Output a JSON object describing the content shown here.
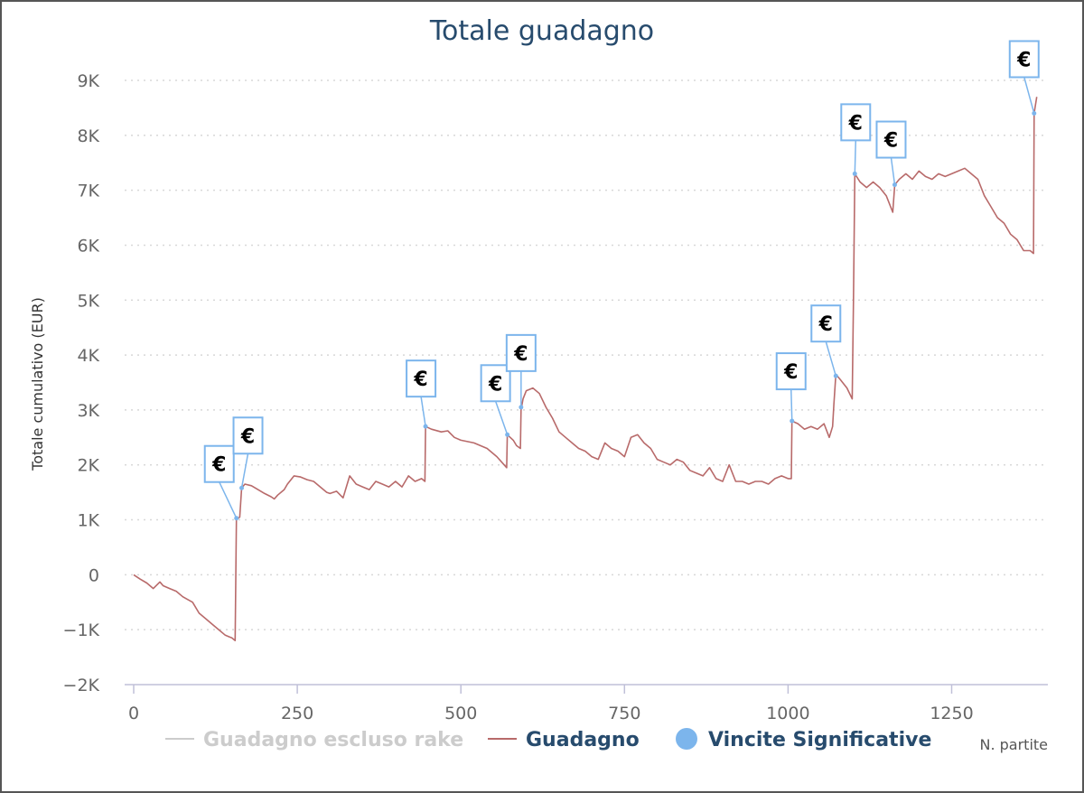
{
  "chart_data": {
    "type": "line",
    "title": "Totale guadagno",
    "ylabel": "Totale cumulativo (EUR)",
    "xlabel": "N. partite",
    "ylim": [
      -2000,
      9000
    ],
    "xlim": [
      0,
      1400
    ],
    "y_ticks": [
      {
        "value": -2000,
        "label": "−2K"
      },
      {
        "value": -1000,
        "label": "−1K"
      },
      {
        "value": 0,
        "label": "0"
      },
      {
        "value": 1000,
        "label": "1K"
      },
      {
        "value": 2000,
        "label": "2K"
      },
      {
        "value": 3000,
        "label": "3K"
      },
      {
        "value": 4000,
        "label": "4K"
      },
      {
        "value": 5000,
        "label": "5K"
      },
      {
        "value": 6000,
        "label": "6K"
      },
      {
        "value": 7000,
        "label": "7K"
      },
      {
        "value": 8000,
        "label": "8K"
      },
      {
        "value": 9000,
        "label": "9K"
      }
    ],
    "x_ticks": [
      {
        "value": 0,
        "label": "0"
      },
      {
        "value": 250,
        "label": "250"
      },
      {
        "value": 500,
        "label": "500"
      },
      {
        "value": 750,
        "label": "750"
      },
      {
        "value": 1000,
        "label": "1000"
      },
      {
        "value": 1250,
        "label": "1250"
      }
    ],
    "grid": true,
    "legend_position": "bottom",
    "legend": [
      {
        "name": "Guadagno escluso rake",
        "color": "#cccccc",
        "kind": "line"
      },
      {
        "name": "Guadagno",
        "color": "#b86a6a",
        "kind": "line"
      },
      {
        "name": "Vincite Significative",
        "color": "#7cb5ec",
        "kind": "marker"
      }
    ],
    "series": [
      {
        "name": "Guadagno",
        "color": "#b86a6a",
        "points": [
          [
            0,
            0
          ],
          [
            10,
            -80
          ],
          [
            20,
            -150
          ],
          [
            30,
            -250
          ],
          [
            40,
            -130
          ],
          [
            45,
            -200
          ],
          [
            55,
            -250
          ],
          [
            65,
            -300
          ],
          [
            75,
            -400
          ],
          [
            90,
            -500
          ],
          [
            100,
            -700
          ],
          [
            110,
            -800
          ],
          [
            120,
            -900
          ],
          [
            130,
            -1000
          ],
          [
            140,
            -1100
          ],
          [
            150,
            -1150
          ],
          [
            155,
            -1200
          ],
          [
            157,
            1000
          ],
          [
            162,
            1050
          ],
          [
            165,
            1580
          ],
          [
            170,
            1650
          ],
          [
            180,
            1620
          ],
          [
            190,
            1550
          ],
          [
            200,
            1480
          ],
          [
            210,
            1420
          ],
          [
            215,
            1380
          ],
          [
            220,
            1450
          ],
          [
            230,
            1550
          ],
          [
            235,
            1650
          ],
          [
            245,
            1800
          ],
          [
            255,
            1780
          ],
          [
            265,
            1730
          ],
          [
            275,
            1700
          ],
          [
            285,
            1600
          ],
          [
            290,
            1550
          ],
          [
            295,
            1500
          ],
          [
            300,
            1480
          ],
          [
            310,
            1520
          ],
          [
            320,
            1400
          ],
          [
            330,
            1800
          ],
          [
            340,
            1650
          ],
          [
            350,
            1600
          ],
          [
            360,
            1550
          ],
          [
            370,
            1700
          ],
          [
            380,
            1650
          ],
          [
            390,
            1600
          ],
          [
            400,
            1700
          ],
          [
            410,
            1600
          ],
          [
            420,
            1800
          ],
          [
            430,
            1700
          ],
          [
            440,
            1750
          ],
          [
            445,
            1700
          ],
          [
            446,
            2700
          ],
          [
            455,
            2650
          ],
          [
            470,
            2600
          ],
          [
            480,
            2620
          ],
          [
            490,
            2500
          ],
          [
            500,
            2450
          ],
          [
            520,
            2400
          ],
          [
            540,
            2300
          ],
          [
            555,
            2150
          ],
          [
            570,
            1950
          ],
          [
            571,
            2550
          ],
          [
            580,
            2450
          ],
          [
            585,
            2350
          ],
          [
            591,
            2300
          ],
          [
            592,
            3000
          ],
          [
            595,
            3200
          ],
          [
            600,
            3350
          ],
          [
            610,
            3400
          ],
          [
            620,
            3300
          ],
          [
            630,
            3050
          ],
          [
            640,
            2850
          ],
          [
            650,
            2600
          ],
          [
            660,
            2500
          ],
          [
            670,
            2400
          ],
          [
            680,
            2300
          ],
          [
            690,
            2250
          ],
          [
            700,
            2150
          ],
          [
            710,
            2100
          ],
          [
            720,
            2400
          ],
          [
            730,
            2300
          ],
          [
            740,
            2250
          ],
          [
            750,
            2150
          ],
          [
            760,
            2500
          ],
          [
            770,
            2550
          ],
          [
            780,
            2400
          ],
          [
            790,
            2300
          ],
          [
            800,
            2100
          ],
          [
            810,
            2050
          ],
          [
            820,
            2000
          ],
          [
            830,
            2100
          ],
          [
            840,
            2050
          ],
          [
            850,
            1900
          ],
          [
            860,
            1850
          ],
          [
            870,
            1800
          ],
          [
            880,
            1950
          ],
          [
            890,
            1750
          ],
          [
            900,
            1700
          ],
          [
            910,
            2000
          ],
          [
            920,
            1700
          ],
          [
            930,
            1700
          ],
          [
            940,
            1650
          ],
          [
            950,
            1700
          ],
          [
            960,
            1700
          ],
          [
            970,
            1650
          ],
          [
            980,
            1750
          ],
          [
            990,
            1800
          ],
          [
            1000,
            1750
          ],
          [
            1005,
            1750
          ],
          [
            1006,
            2800
          ],
          [
            1015,
            2750
          ],
          [
            1025,
            2650
          ],
          [
            1035,
            2700
          ],
          [
            1045,
            2650
          ],
          [
            1055,
            2750
          ],
          [
            1063,
            2500
          ],
          [
            1068,
            2700
          ],
          [
            1070,
            3100
          ],
          [
            1073,
            3650
          ],
          [
            1080,
            3550
          ],
          [
            1090,
            3400
          ],
          [
            1098,
            3200
          ],
          [
            1100,
            5000
          ],
          [
            1102,
            7300
          ],
          [
            1110,
            7150
          ],
          [
            1120,
            7050
          ],
          [
            1130,
            7150
          ],
          [
            1140,
            7050
          ],
          [
            1150,
            6900
          ],
          [
            1160,
            6600
          ],
          [
            1163,
            7100
          ],
          [
            1170,
            7200
          ],
          [
            1180,
            7300
          ],
          [
            1190,
            7200
          ],
          [
            1200,
            7350
          ],
          [
            1210,
            7250
          ],
          [
            1220,
            7200
          ],
          [
            1230,
            7300
          ],
          [
            1240,
            7250
          ],
          [
            1250,
            7300
          ],
          [
            1260,
            7350
          ],
          [
            1270,
            7400
          ],
          [
            1280,
            7300
          ],
          [
            1290,
            7200
          ],
          [
            1300,
            6900
          ],
          [
            1310,
            6700
          ],
          [
            1320,
            6500
          ],
          [
            1330,
            6400
          ],
          [
            1340,
            6200
          ],
          [
            1350,
            6100
          ],
          [
            1360,
            5900
          ],
          [
            1370,
            5900
          ],
          [
            1375,
            5850
          ],
          [
            1376,
            8400
          ],
          [
            1380,
            8700
          ]
        ]
      }
    ],
    "markers": {
      "name": "Vincite Significative",
      "color": "#7cb5ec",
      "flag_label": "€",
      "points": [
        [
          157,
          1030
        ],
        [
          165,
          1580
        ],
        [
          446,
          2700
        ],
        [
          571,
          2550
        ],
        [
          592,
          3050
        ],
        [
          1006,
          2800
        ],
        [
          1073,
          3620
        ],
        [
          1102,
          7300
        ],
        [
          1163,
          7100
        ],
        [
          1376,
          8400
        ]
      ]
    }
  }
}
